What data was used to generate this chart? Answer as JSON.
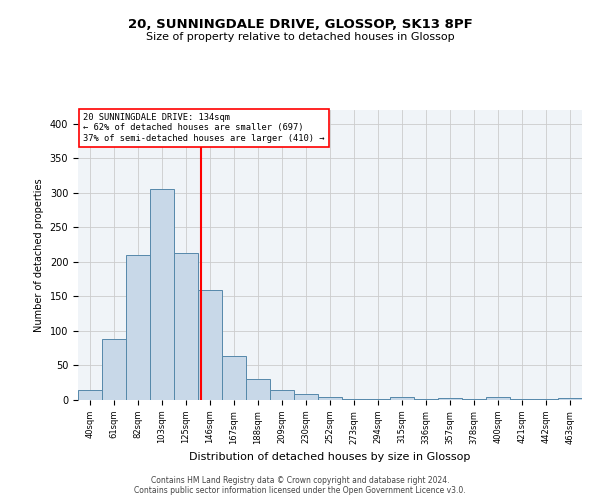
{
  "title1": "20, SUNNINGDALE DRIVE, GLOSSOP, SK13 8PF",
  "title2": "Size of property relative to detached houses in Glossop",
  "xlabel": "Distribution of detached houses by size in Glossop",
  "ylabel": "Number of detached properties",
  "bin_labels": [
    "40sqm",
    "61sqm",
    "82sqm",
    "103sqm",
    "125sqm",
    "146sqm",
    "167sqm",
    "188sqm",
    "209sqm",
    "230sqm",
    "252sqm",
    "273sqm",
    "294sqm",
    "315sqm",
    "336sqm",
    "357sqm",
    "378sqm",
    "400sqm",
    "421sqm",
    "442sqm",
    "463sqm"
  ],
  "bar_heights": [
    14,
    88,
    210,
    305,
    213,
    160,
    64,
    30,
    15,
    9,
    5,
    2,
    1,
    4,
    1,
    3,
    1,
    4,
    1,
    1,
    3
  ],
  "bar_color": "#c8d8e8",
  "bar_edgecolor": "#5588aa",
  "red_line_x": 4.62,
  "annotation_line1": "20 SUNNINGDALE DRIVE: 134sqm",
  "annotation_line2": "← 62% of detached houses are smaller (697)",
  "annotation_line3": "37% of semi-detached houses are larger (410) →",
  "ylim": [
    0,
    420
  ],
  "yticks": [
    0,
    50,
    100,
    150,
    200,
    250,
    300,
    350,
    400
  ],
  "grid_color": "#cccccc",
  "background_color": "#f0f4f8",
  "footer1": "Contains HM Land Registry data © Crown copyright and database right 2024.",
  "footer2": "Contains public sector information licensed under the Open Government Licence v3.0."
}
